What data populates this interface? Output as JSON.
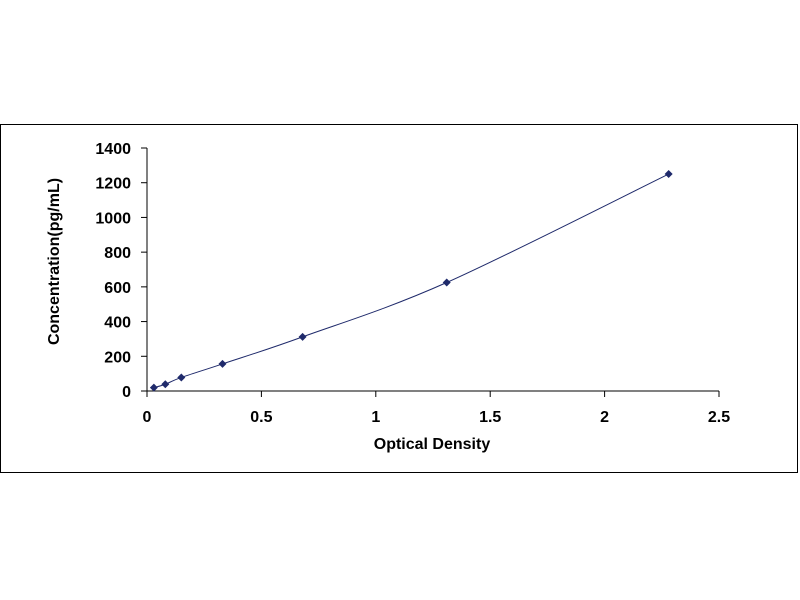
{
  "chart_data": {
    "type": "scatter",
    "title": "",
    "xlabel": "Optical Density",
    "ylabel": "Concentration(pg/mL)",
    "xlim": [
      0,
      2.5
    ],
    "ylim": [
      0,
      1400
    ],
    "x_ticks": [
      0,
      0.5,
      1,
      1.5,
      2,
      2.5
    ],
    "x_tick_labels": [
      "0",
      "0.5",
      "1",
      "1.5",
      "2",
      "2.5"
    ],
    "y_ticks": [
      0,
      200,
      400,
      600,
      800,
      1000,
      1200,
      1400
    ],
    "y_tick_labels": [
      "0",
      "200",
      "400",
      "600",
      "800",
      "1000",
      "1200",
      "1400"
    ],
    "grid": false,
    "legend": "none",
    "marker_color": "#1f2a6b",
    "line_color": "#1f2a6b",
    "series": [
      {
        "x": [
          0.03,
          0.08,
          0.15,
          0.33,
          0.68,
          1.31,
          2.28
        ],
        "y": [
          19.5,
          39,
          78,
          156,
          312,
          625,
          1250
        ]
      }
    ]
  }
}
